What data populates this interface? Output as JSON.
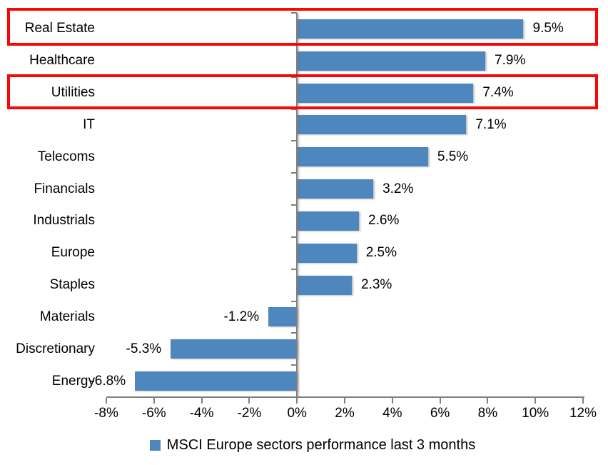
{
  "chart_data": {
    "type": "bar",
    "orientation": "horizontal",
    "title": "",
    "legend": "MSCI Europe sectors performance last 3 months",
    "categories": [
      "Real Estate",
      "Healthcare",
      "Utilities",
      "IT",
      "Telecoms",
      "Financials",
      "Industrials",
      "Europe",
      "Staples",
      "Materials",
      "Discretionary",
      "Energy"
    ],
    "values": [
      9.5,
      7.9,
      7.4,
      7.1,
      5.5,
      3.2,
      2.6,
      2.5,
      2.3,
      -1.2,
      -5.3,
      -6.8
    ],
    "value_labels": [
      "9.5%",
      "7.9%",
      "7.4%",
      "7.1%",
      "5.5%",
      "3.2%",
      "2.6%",
      "2.5%",
      "2.3%",
      "-1.2%",
      "-5.3%",
      "-6.8%"
    ],
    "xlim": [
      -8,
      12
    ],
    "x_ticks": [
      {
        "value": -8,
        "label": "-8%"
      },
      {
        "value": -6,
        "label": "-6%"
      },
      {
        "value": -4,
        "label": "-4%"
      },
      {
        "value": -2,
        "label": "-2%"
      },
      {
        "value": 0,
        "label": "0%"
      },
      {
        "value": 2,
        "label": "2%"
      },
      {
        "value": 4,
        "label": "4%"
      },
      {
        "value": 6,
        "label": "6%"
      },
      {
        "value": 8,
        "label": "8%"
      },
      {
        "value": 10,
        "label": "10%"
      },
      {
        "value": 12,
        "label": "12%"
      }
    ],
    "grid": false,
    "legend_position": "bottom",
    "highlighted_categories": [
      "Real Estate",
      "Utilities"
    ],
    "colors": {
      "bar": "#4E86BE",
      "axis": "#808080",
      "highlight": "#FB0505",
      "text": "#000000"
    }
  }
}
